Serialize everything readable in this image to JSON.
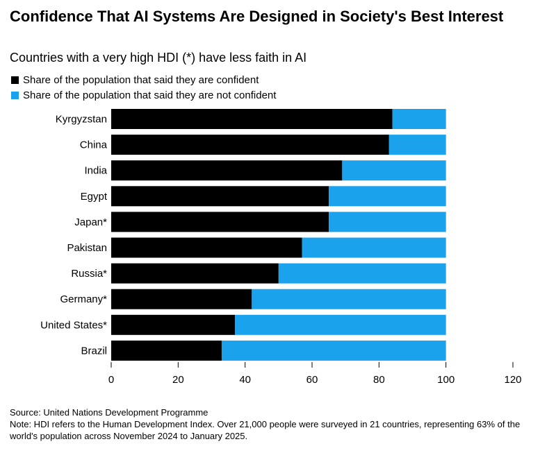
{
  "title": "Confidence That AI Systems Are Designed in Society's Best Interest",
  "subtitle": "Countries with a very high HDI (*) have less faith in AI",
  "legend": [
    {
      "label": "Share of the population that said they are confident",
      "color": "#000000"
    },
    {
      "label": "Share of the population that said they are not confident",
      "color": "#1aa3ec"
    }
  ],
  "source": "Source: United Nations Development Programme",
  "note": "Note: HDI refers to the Human Development Index. Over 21,000 people were surveyed in 21 countries, representing 63% of the world's population across November 2024 to January 2025.",
  "chart_data": {
    "type": "bar",
    "orientation": "horizontal",
    "stacked": true,
    "categories": [
      "Kyrgyzstan",
      "China",
      "India",
      "Egypt",
      "Japan*",
      "Pakistan",
      "Russia*",
      "Germany*",
      "United States*",
      "Brazil"
    ],
    "series": [
      {
        "name": "Share of the population that said they are confident",
        "color": "#000000",
        "values": [
          84,
          83,
          69,
          65,
          65,
          57,
          50,
          42,
          37,
          33
        ]
      },
      {
        "name": "Share of the population that said they are not confident",
        "color": "#1aa3ec",
        "values": [
          16,
          17,
          31,
          35,
          35,
          43,
          50,
          58,
          63,
          67
        ]
      }
    ],
    "xlim": [
      0,
      120
    ],
    "xticks": [
      0,
      20,
      40,
      60,
      80,
      100,
      120
    ],
    "grid": false,
    "legend_position": "top-left"
  }
}
